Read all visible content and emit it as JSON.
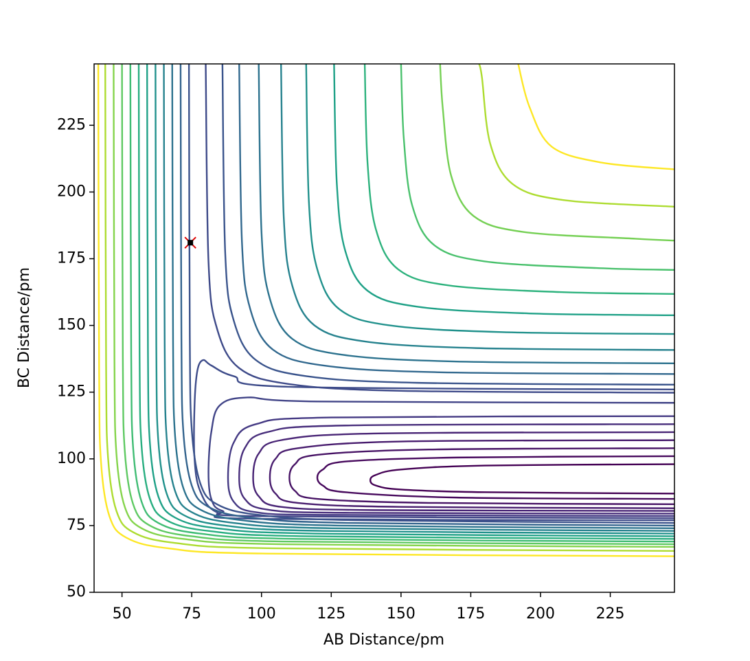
{
  "chart_data": {
    "type": "contour",
    "xlabel": "AB Distance/pm",
    "ylabel": "BC Distance/pm",
    "xlim": [
      40,
      248
    ],
    "ylim": [
      50,
      248
    ],
    "xticks": [
      50,
      75,
      100,
      125,
      150,
      175,
      200,
      225
    ],
    "yticks": [
      50,
      75,
      100,
      125,
      150,
      175,
      200,
      225
    ],
    "series": [
      {
        "color": "#3e4a89",
        "x": [
          80,
          81,
          84,
          92,
          110,
          150,
          248
        ],
        "y": [
          248,
          174,
          149,
          134,
          128,
          125.5,
          124.8
        ]
      },
      {
        "color": "#3a548c",
        "x": [
          86,
          87,
          90,
          98,
          116,
          156,
          248
        ],
        "y": [
          248,
          177,
          152,
          137,
          131,
          128.5,
          127.8
        ]
      },
      {
        "color": "#31688e",
        "x": [
          92,
          93,
          96,
          104,
          122,
          162,
          248
        ],
        "y": [
          248,
          181,
          156,
          141,
          135,
          132.5,
          131.8
        ]
      },
      {
        "color": "#2c728e",
        "x": [
          99,
          100,
          103,
          111,
          129,
          169,
          248
        ],
        "y": [
          248,
          185,
          160,
          145,
          139,
          136.5,
          135.8
        ]
      },
      {
        "color": "#26828e",
        "x": [
          107,
          108,
          111,
          119,
          137,
          177,
          248
        ],
        "y": [
          248,
          190,
          165,
          150,
          144,
          141.5,
          140.8
        ]
      },
      {
        "color": "#21918c",
        "x": [
          116,
          117,
          120,
          128,
          146,
          186,
          248
        ],
        "y": [
          248,
          196,
          171,
          156,
          150,
          147.5,
          146.8
        ]
      },
      {
        "color": "#1fa187",
        "x": [
          126,
          127,
          130,
          138,
          156,
          196,
          248
        ],
        "y": [
          248,
          203,
          178,
          163,
          157,
          154.5,
          153.8
        ]
      },
      {
        "color": "#2db27d",
        "x": [
          137,
          138,
          141,
          149,
          167,
          207,
          248
        ],
        "y": [
          248,
          211,
          186,
          171,
          165,
          162.5,
          161.8
        ]
      },
      {
        "color": "#4ac16d",
        "x": [
          150,
          151,
          154,
          162,
          180,
          220,
          248
        ],
        "y": [
          248,
          220,
          195,
          180,
          174,
          171.5,
          170.8
        ]
      },
      {
        "color": "#75d054",
        "x": [
          164,
          165,
          168,
          176,
          194,
          234,
          248
        ],
        "y": [
          248,
          231,
          206,
          191,
          185,
          182.5,
          181.8
        ]
      },
      {
        "color": "#addc30",
        "x": [
          178,
          179,
          182,
          190,
          208,
          248
        ],
        "y": [
          248,
          243,
          218,
          203,
          197,
          194.5
        ]
      },
      {
        "color": "#fde725",
        "x": [
          192,
          196,
          204,
          222,
          248
        ],
        "y": [
          248,
          232,
          217,
          211,
          208.5
        ]
      },
      {
        "color": "#440154",
        "x": [
          248,
          180,
          150,
          141,
          139,
          141,
          150,
          180,
          248
        ],
        "y": [
          98,
          97.5,
          96,
          94,
          92,
          90,
          88.5,
          87.5,
          87
        ]
      },
      {
        "color": "#46085c",
        "x": [
          248,
          170,
          130,
          122,
          120,
          122,
          130,
          170,
          248
        ],
        "y": [
          101,
          100.5,
          99,
          96,
          93,
          90,
          87.5,
          85.5,
          85
        ]
      },
      {
        "color": "#471365",
        "x": [
          248,
          160,
          120,
          112,
          110,
          112,
          120,
          160,
          248
        ],
        "y": [
          104,
          103.5,
          101.5,
          98,
          93,
          88,
          85,
          83.5,
          83
        ]
      },
      {
        "color": "#481c6e",
        "x": [
          248,
          150,
          113,
          105,
          103,
          105,
          113,
          150,
          248
        ],
        "y": [
          107,
          106.5,
          104,
          100,
          93,
          87,
          83.5,
          82,
          81.5
        ]
      },
      {
        "color": "#482475",
        "x": [
          248,
          140,
          107,
          99,
          97,
          99,
          107,
          140,
          248
        ],
        "y": [
          110,
          109.5,
          107,
          102,
          93,
          86,
          82,
          80.8,
          80.5
        ]
      },
      {
        "color": "#472d7b",
        "x": [
          248,
          130,
          102,
          94,
          92,
          94,
          102,
          130,
          248
        ],
        "y": [
          113,
          112.5,
          110,
          104,
          93,
          85,
          81,
          79.8,
          79.5
        ]
      },
      {
        "color": "#443983",
        "x": [
          248,
          125,
          98,
          90,
          88,
          90,
          98,
          125,
          248
        ],
        "y": [
          116,
          115.5,
          113,
          106,
          93,
          84,
          80,
          79,
          78.6
        ]
      },
      {
        "color": "#414487",
        "x": [
          248,
          120,
          95,
          85,
          82,
          81,
          82,
          86,
          100,
          248
        ],
        "y": [
          121,
          121.5,
          123,
          120,
          110,
          95,
          85,
          80.5,
          78.5,
          77.8
        ]
      },
      {
        "color": "#3e4c8a",
        "x": [
          248,
          110,
          90,
          82,
          79,
          77,
          76,
          76,
          78,
          84,
          100,
          248
        ],
        "y": [
          126,
          127,
          131,
          135,
          137,
          133,
          120,
          100,
          88,
          80,
          77.5,
          77
        ]
      },
      {
        "color": "#3b528b",
        "x": [
          74,
          74.3,
          75,
          78,
          84,
          99,
          134,
          248
        ],
        "y": [
          248,
          146,
          111,
          91,
          83,
          79,
          77,
          76
        ]
      },
      {
        "color": "#33638d",
        "x": [
          71,
          71.3,
          72,
          75,
          81,
          96,
          131,
          248
        ],
        "y": [
          248,
          145,
          110,
          90,
          82,
          78,
          76,
          75
        ]
      },
      {
        "color": "#2c728e",
        "x": [
          68,
          68.3,
          69,
          72,
          78,
          93,
          128,
          248
        ],
        "y": [
          248,
          144,
          109,
          89,
          81,
          77,
          75,
          74
        ]
      },
      {
        "color": "#26828e",
        "x": [
          65,
          65.3,
          66,
          69,
          75,
          90,
          125,
          248
        ],
        "y": [
          248,
          143,
          108,
          88,
          80,
          76,
          74,
          73
        ]
      },
      {
        "color": "#21918c",
        "x": [
          62,
          62.3,
          63,
          66,
          72,
          87,
          122,
          248
        ],
        "y": [
          248,
          142,
          107,
          87,
          79,
          75,
          73,
          72
        ]
      },
      {
        "color": "#1fa187",
        "x": [
          59,
          59.3,
          60,
          63,
          69,
          84,
          119,
          248
        ],
        "y": [
          248,
          141,
          106,
          86,
          78,
          74,
          72,
          71
        ]
      },
      {
        "color": "#28ae80",
        "x": [
          56,
          56.3,
          57,
          60,
          66,
          81,
          116,
          248
        ],
        "y": [
          248,
          140,
          105,
          85,
          77,
          73,
          71,
          70
        ]
      },
      {
        "color": "#3fbc73",
        "x": [
          53,
          53.3,
          54,
          57,
          63,
          78,
          113,
          248
        ],
        "y": [
          248,
          139,
          104,
          84,
          76,
          72,
          70,
          69
        ]
      },
      {
        "color": "#5ec962",
        "x": [
          50,
          50.3,
          51,
          54,
          60,
          75,
          110,
          248
        ],
        "y": [
          248,
          138,
          103,
          83,
          75,
          71,
          69,
          68
        ]
      },
      {
        "color": "#84d44b",
        "x": [
          47,
          47.3,
          48,
          51,
          57,
          72,
          107,
          248
        ],
        "y": [
          248,
          137,
          102,
          82,
          74,
          70,
          68,
          67
        ]
      },
      {
        "color": "#addc30",
        "x": [
          44,
          44.3,
          45,
          48,
          54,
          69,
          104,
          248
        ],
        "y": [
          248,
          135.5,
          100.5,
          80.5,
          72.5,
          68.5,
          66.5,
          65.5
        ]
      },
      {
        "color": "#fde725",
        "x": [
          41.5,
          41.8,
          42.5,
          45.5,
          51.5,
          66.5,
          101.5,
          248
        ],
        "y": [
          248,
          133.5,
          98.5,
          78.5,
          70.5,
          66.5,
          64.5,
          63.5
        ]
      }
    ],
    "points": {
      "color": "#e00000",
      "x": [
        74.5
      ],
      "y": [
        181
      ]
    }
  }
}
